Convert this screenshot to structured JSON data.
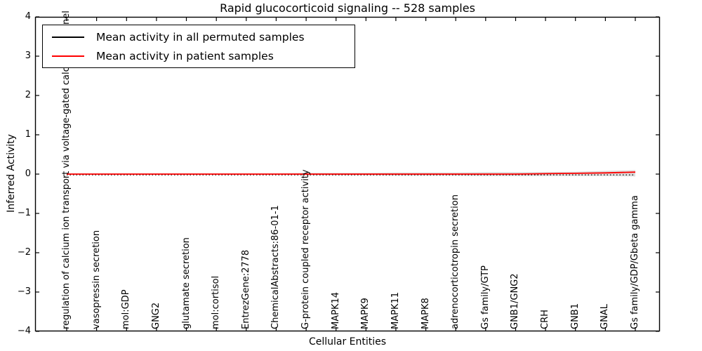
{
  "title": "Rapid glucocorticoid signaling -- 528 samples",
  "legend": {
    "items": [
      {
        "label": "Mean activity in all permuted samples",
        "color": "#000000"
      },
      {
        "label": "Mean activity in patient samples",
        "color": "#ff0000"
      }
    ]
  },
  "colors": {
    "band": "#dcdcdc",
    "axis": "#000000",
    "background": "#ffffff"
  },
  "chart_data": {
    "type": "line",
    "title": "Rapid glucocorticoid signaling -- 528 samples",
    "xlabel": "Cellular Entities",
    "ylabel": "Inferred Activity",
    "ylim": [
      -4,
      4
    ],
    "ytick_values": [
      4,
      3,
      2,
      1,
      0,
      -1,
      -2,
      -3,
      -4
    ],
    "ytick_labels": [
      "4",
      "3",
      "2",
      "1",
      "0",
      "−1",
      "−2",
      "−3",
      "−4"
    ],
    "grid": false,
    "legend_position": "upper left",
    "categories": [
      "regulation of calcium ion transport via voltage-gated calcium channel",
      "vasopressin secretion",
      "mol:GDP",
      "GNG2",
      "glutamate secretion",
      "mol:cortisol",
      "EntrezGene:2778",
      "ChemicalAbstracts:86-01-1",
      "G-protein coupled receptor activity",
      "MAPK14",
      "MAPK9",
      "MAPK11",
      "MAPK8",
      "adrenocorticotropin secretion",
      "Gs family/GTP",
      "GNB1/GNG2",
      "CRH",
      "GNB1",
      "GNAL",
      "Gs family/GDP/Gbeta gamma"
    ],
    "series": [
      {
        "name": "Mean activity in all permuted samples",
        "color": "#000000",
        "style": "dotted",
        "values": [
          -0.02,
          -0.02,
          -0.02,
          -0.02,
          -0.02,
          -0.02,
          -0.02,
          -0.02,
          -0.02,
          -0.02,
          -0.02,
          -0.02,
          -0.02,
          -0.02,
          -0.02,
          -0.02,
          -0.02,
          -0.02,
          -0.02,
          -0.02
        ]
      },
      {
        "name": "Mean activity in patient samples",
        "color": "#ff0000",
        "style": "solid",
        "values": [
          0,
          0,
          0,
          0,
          0,
          0,
          0,
          0,
          0,
          0,
          0,
          0,
          0,
          0,
          0,
          0,
          0.01,
          0.02,
          0.03,
          0.05
        ]
      }
    ],
    "band": {
      "name": "permutation spread",
      "color": "#dcdcdc",
      "upper": [
        0.02,
        0.02,
        0.02,
        0.02,
        0.02,
        0.02,
        0.02,
        0.02,
        0.03,
        0.03,
        0.03,
        0.04,
        0.04,
        0.04,
        0.05,
        0.05,
        0.05,
        0.06,
        0.08,
        0.1
      ],
      "lower": [
        -0.02,
        -0.02,
        -0.02,
        -0.02,
        -0.02,
        -0.02,
        -0.02,
        -0.02,
        -0.03,
        -0.03,
        -0.03,
        -0.04,
        -0.04,
        -0.04,
        -0.05,
        -0.05,
        -0.05,
        -0.05,
        -0.05,
        -0.06
      ]
    }
  }
}
